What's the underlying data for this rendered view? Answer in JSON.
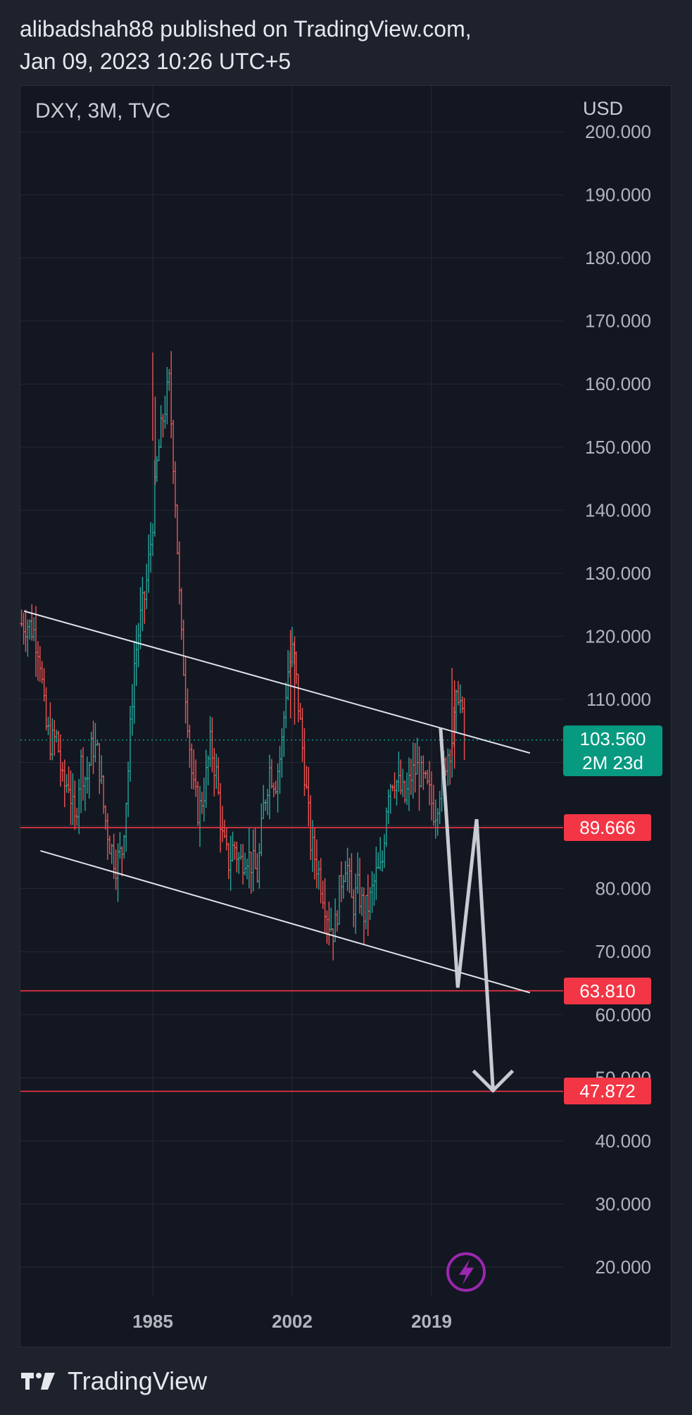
{
  "header": {
    "line1": "alibadshah88 published on TradingView.com,",
    "line2": "Jan 09, 2023 10:26 UTC+5"
  },
  "chart_header": {
    "symbol": "DXY, 3M, TVC",
    "currency": "USD"
  },
  "price_axis_labels": [
    "200.000",
    "190.000",
    "180.000",
    "170.000",
    "160.000",
    "150.000",
    "140.000",
    "130.000",
    "120.000",
    "110.000",
    "80.000",
    "70.000",
    "60.000",
    "50.000",
    "40.000",
    "30.000",
    "20.000"
  ],
  "time_axis_labels": [
    "1985",
    "2002",
    "2019"
  ],
  "last_price": {
    "value": "103.560",
    "countdown": "2M 23d"
  },
  "level_tags": [
    {
      "value": "89.666",
      "y": 89.666
    },
    {
      "value": "63.810",
      "y": 63.81
    },
    {
      "value": "47.872",
      "y": 47.872
    }
  ],
  "colors": {
    "background": "#131722",
    "up": "#26a69a",
    "down": "#ef5350",
    "level_line": "#f23645",
    "last_price": "#089981",
    "trendline": "#e0e3eb",
    "arrow": "#c8cbd2",
    "icon_ring": "#9c27b0"
  },
  "footer": {
    "brand": "TradingView",
    "icon": "tradingview-logo"
  },
  "lightning_icon": "lightning-icon",
  "chart_data": {
    "type": "candlestick",
    "title": "DXY, 3M, TVC",
    "xlim": [
      1969,
      2031
    ],
    "ylim": [
      15,
      200
    ],
    "y_scale": "linear",
    "grid": true,
    "ticks_y": [
      200,
      190,
      180,
      170,
      160,
      150,
      140,
      130,
      120,
      110,
      80,
      70,
      60,
      50,
      40,
      30,
      20
    ],
    "ticks_x": [
      1985,
      2002,
      2019
    ],
    "series": [
      {
        "anchor_closes": [
          [
            1969.0,
            122
          ],
          [
            1970.0,
            122
          ],
          [
            1971.0,
            121
          ],
          [
            1972.0,
            118
          ],
          [
            1973.0,
            106
          ],
          [
            1974.0,
            103
          ],
          [
            1975.0,
            104
          ],
          [
            1976.0,
            96
          ],
          [
            1977.0,
            97
          ],
          [
            1978.0,
            90
          ],
          [
            1979.0,
            100
          ],
          [
            1980.0,
            97
          ],
          [
            1981.0,
            103
          ],
          [
            1982.0,
            101
          ],
          [
            1983.0,
            92
          ],
          [
            1984.0,
            87
          ],
          [
            1985.0,
            84
          ],
          [
            1986.0,
            86
          ],
          [
            1987.0,
            98
          ],
          [
            1988.0,
            115
          ],
          [
            1989.0,
            122
          ],
          [
            1990.0,
            127
          ],
          [
            1991.0,
            136
          ],
          [
            1992.0,
            148
          ],
          [
            1993.0,
            155
          ],
          [
            1994.0,
            160
          ],
          [
            1995.0,
            143
          ],
          [
            1996.0,
            120
          ],
          [
            1997.0,
            109
          ],
          [
            1998.0,
            96
          ],
          [
            1999.0,
            92
          ],
          [
            2000.0,
            96
          ],
          [
            2001.0,
            103
          ],
          [
            2002.0,
            98
          ],
          [
            2003.0,
            88
          ],
          [
            2004.0,
            84
          ],
          [
            2005.0,
            87
          ],
          [
            2006.0,
            84
          ],
          [
            2007.0,
            86
          ],
          [
            2008.0,
            84
          ],
          [
            2009.0,
            82
          ],
          [
            2010.0,
            93
          ],
          [
            2011.0,
            99
          ],
          [
            2012.0,
            97
          ],
          [
            2013.0,
            102
          ],
          [
            2014.0,
            114
          ],
          [
            2015.0,
            118
          ],
          [
            2016.0,
            108
          ],
          [
            2017.0,
            98
          ],
          [
            2018.0,
            87
          ],
          [
            2019.0,
            84
          ],
          [
            2020.0,
            80
          ],
          [
            2021.0,
            75
          ],
          [
            2022.0,
            73
          ],
          [
            2023.0,
            81
          ],
          [
            2024.0,
            85
          ],
          [
            2025.0,
            77
          ],
          [
            2026.0,
            80
          ],
          [
            2027.0,
            76
          ],
          [
            2028.0,
            78
          ],
          [
            2029.0,
            82
          ],
          [
            2030.0,
            83
          ],
          [
            2031.0,
            96
          ],
          [
            2032.0,
            98
          ],
          [
            2033.0,
            96
          ],
          [
            2034.0,
            94
          ],
          [
            2035.0,
            98
          ],
          [
            2036.0,
            99
          ],
          [
            2037.0,
            97
          ],
          [
            2038.0,
            95
          ],
          [
            2039.0,
            92
          ],
          [
            2040.0,
            97
          ],
          [
            2041.0,
            101
          ],
          [
            2042.0,
            104
          ],
          [
            2043.0,
            112
          ],
          [
            2044.0,
            103.56
          ]
        ]
      }
    ],
    "last_price": 103.56,
    "horizontal_levels": [
      89.666,
      63.81,
      47.872
    ],
    "trendlines": [
      {
        "from": [
          1969.3,
          124.0
        ],
        "to": [
          2031.0,
          101.5
        ]
      },
      {
        "from": [
          1971.3,
          86.0
        ],
        "to": [
          2031.0,
          63.5
        ]
      }
    ],
    "projection_arrow": [
      [
        2020.1,
        105.5
      ],
      [
        2022.2,
        64.3
      ],
      [
        2024.5,
        91.0
      ],
      [
        2026.5,
        48.0
      ]
    ]
  }
}
